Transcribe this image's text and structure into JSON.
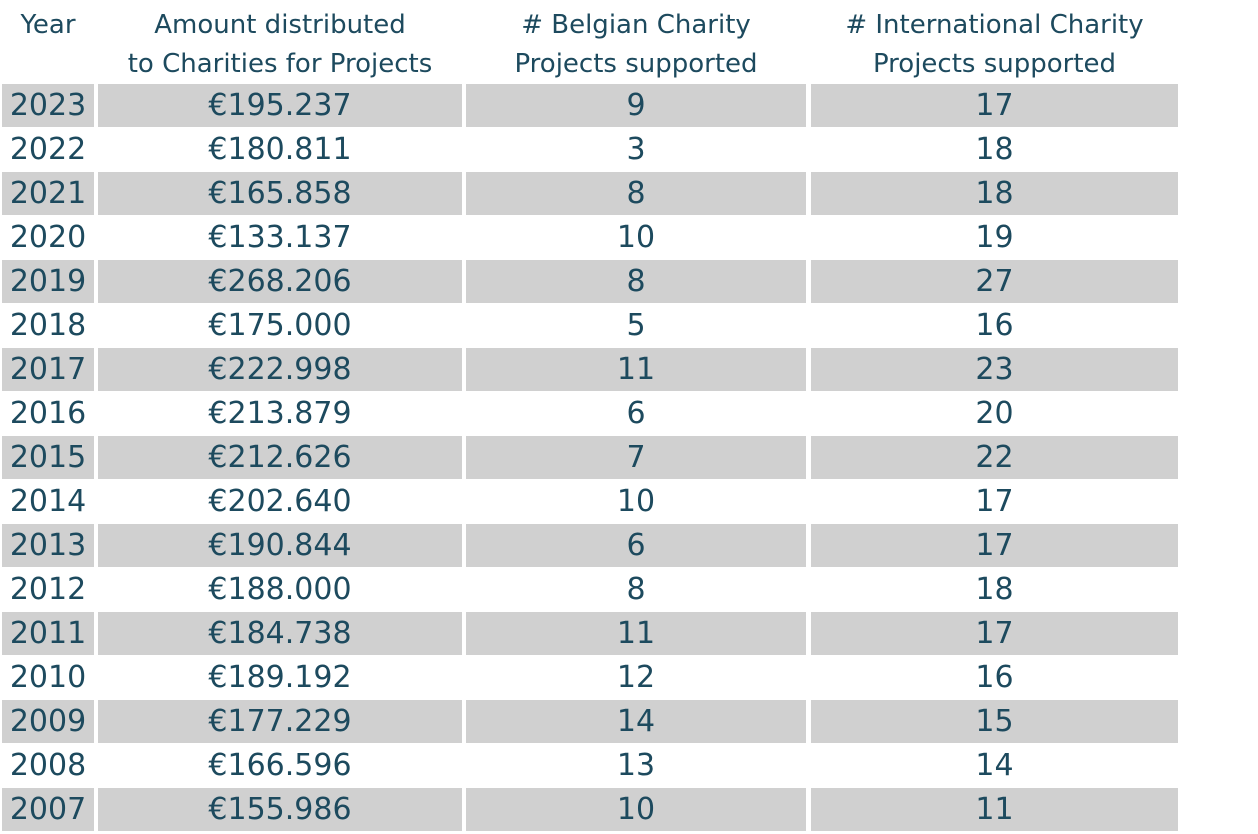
{
  "chart_data": {
    "type": "table",
    "columns": [
      "Year",
      "Amount distributed\nto Charities for Projects",
      "# Belgian Charity\nProjects supported",
      "# International Charity\nProjects supported"
    ],
    "rows": [
      [
        "2023",
        "€195.237",
        "9",
        "17"
      ],
      [
        "2022",
        "€180.811",
        "3",
        "18"
      ],
      [
        "2021",
        "€165.858",
        "8",
        "18"
      ],
      [
        "2020",
        "€133.137",
        "10",
        "19"
      ],
      [
        "2019",
        "€268.206",
        "8",
        "27"
      ],
      [
        "2018",
        "€175.000",
        "5",
        "16"
      ],
      [
        "2017",
        "€222.998",
        "11",
        "23"
      ],
      [
        "2016",
        "€213.879",
        "6",
        "20"
      ],
      [
        "2015",
        "€212.626",
        "7",
        "22"
      ],
      [
        "2014",
        "€202.640",
        "10",
        "17"
      ],
      [
        "2013",
        "€190.844",
        "6",
        "17"
      ],
      [
        "2012",
        "€188.000",
        "8",
        "18"
      ],
      [
        "2011",
        "€184.738",
        "11",
        "17"
      ],
      [
        "2010",
        "€189.192",
        "12",
        "16"
      ],
      [
        "2009",
        "€177.229",
        "14",
        "15"
      ],
      [
        "2008",
        "€166.596",
        "13",
        "14"
      ],
      [
        "2007",
        "€155.986",
        "10",
        "11"
      ]
    ]
  },
  "colors": {
    "text": "#1d4a5e",
    "row_shade": "#d0d0d0",
    "background": "#ffffff"
  }
}
